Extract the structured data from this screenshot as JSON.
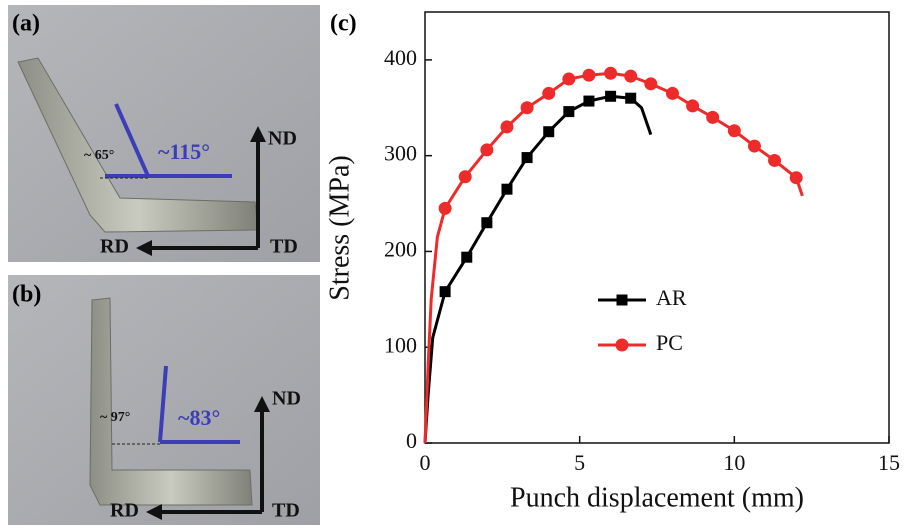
{
  "chart_data": {
    "type": "line",
    "panel_label": "(c)",
    "x_label": "Punch displacement (mm)",
    "y_label": "Stress (MPa)",
    "xlim": [
      0,
      15
    ],
    "xticks": [
      0,
      5,
      10,
      15
    ],
    "ylim": [
      0,
      450
    ],
    "yticks": [
      0,
      100,
      200,
      300,
      400
    ],
    "series": [
      {
        "name": "AR",
        "color": "#000000",
        "marker": "square",
        "x": [
          0,
          0.1,
          0.25,
          0.65,
          1.35,
          2,
          2.65,
          3.3,
          4,
          4.65,
          5.3,
          6,
          6.65,
          7.0,
          7.3
        ],
        "values": [
          0,
          50,
          110,
          158,
          194,
          230,
          265,
          298,
          325,
          346,
          357,
          362,
          360,
          350,
          322
        ],
        "markers": [
          false,
          false,
          false,
          true,
          true,
          true,
          true,
          true,
          true,
          true,
          true,
          true,
          true,
          false,
          false
        ]
      },
      {
        "name": "PC",
        "color": "#ee2b2b",
        "marker": "circle",
        "x": [
          0,
          0.1,
          0.2,
          0.4,
          0.65,
          1.3,
          2,
          2.65,
          3.3,
          4,
          4.65,
          5.3,
          6,
          6.65,
          7.3,
          8,
          8.65,
          9.3,
          10,
          10.65,
          11.3,
          12,
          12.2
        ],
        "values": [
          0,
          80,
          150,
          215,
          245,
          278,
          306,
          330,
          350,
          365,
          380,
          384,
          386,
          383,
          375,
          365,
          352,
          340,
          326,
          310,
          295,
          277,
          258
        ],
        "markers": [
          false,
          false,
          false,
          false,
          true,
          true,
          true,
          true,
          true,
          true,
          true,
          true,
          true,
          true,
          true,
          true,
          true,
          true,
          true,
          true,
          true,
          true,
          false
        ]
      }
    ]
  },
  "panels": {
    "a": {
      "label": "(a)",
      "outer_angle": "~ 65°",
      "inner_angle": "~115°",
      "nd": "ND",
      "rd": "RD",
      "td": "TD"
    },
    "b": {
      "label": "(b)",
      "outer_angle": "~ 97°",
      "inner_angle": "~83°",
      "nd": "ND",
      "rd": "RD",
      "td": "TD"
    }
  }
}
